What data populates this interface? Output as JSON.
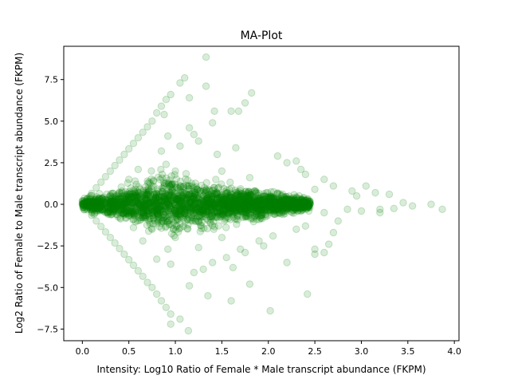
{
  "chart_data": {
    "type": "scatter",
    "title": "MA-Plot",
    "xlabel": "Intensity: Log10 Ratio of Female * Male transcript abundance (FKPM)",
    "ylabel": "Log2 Ratio of Female to Male transcript abundance (FKPM)",
    "xlim": [
      -0.2,
      4.05
    ],
    "ylim": [
      -8.2,
      9.5
    ],
    "xticks": [
      0.0,
      0.5,
      1.0,
      1.5,
      2.0,
      2.5,
      3.0,
      3.5,
      4.0
    ],
    "xtick_labels": [
      "0.0",
      "0.5",
      "1.0",
      "1.5",
      "2.0",
      "2.5",
      "3.0",
      "3.5",
      "4.0"
    ],
    "yticks": [
      -7.5,
      -5.0,
      -2.5,
      0.0,
      2.5,
      5.0,
      7.5
    ],
    "ytick_labels": [
      "−7.5",
      "−5.0",
      "−2.5",
      "0.0",
      "2.5",
      "5.0",
      "7.5"
    ],
    "grid": false,
    "legend": false,
    "marker": "circle",
    "color": "#008000",
    "alpha": 0.15,
    "series": [
      {
        "points": [
          [
            0.0,
            0.0
          ],
          [
            0.05,
            0.33
          ],
          [
            0.1,
            0.66
          ],
          [
            0.15,
            1.0
          ],
          [
            0.2,
            1.33
          ],
          [
            0.25,
            1.66
          ],
          [
            0.3,
            2.0
          ],
          [
            0.35,
            2.33
          ],
          [
            0.4,
            2.66
          ],
          [
            0.45,
            3.0
          ],
          [
            0.5,
            3.33
          ],
          [
            0.55,
            3.66
          ],
          [
            0.6,
            4.0
          ],
          [
            0.65,
            4.33
          ],
          [
            0.7,
            4.66
          ],
          [
            0.75,
            5.0
          ],
          [
            0.8,
            5.5
          ],
          [
            0.85,
            5.9
          ],
          [
            0.9,
            6.3
          ],
          [
            0.95,
            6.6
          ],
          [
            0.05,
            -0.33
          ],
          [
            0.1,
            -0.66
          ],
          [
            0.15,
            -1.0
          ],
          [
            0.2,
            -1.33
          ],
          [
            0.25,
            -1.66
          ],
          [
            0.3,
            -2.0
          ],
          [
            0.35,
            -2.33
          ],
          [
            0.4,
            -2.66
          ],
          [
            0.45,
            -3.0
          ],
          [
            0.5,
            -3.33
          ],
          [
            0.55,
            -3.66
          ],
          [
            0.6,
            -4.0
          ],
          [
            0.65,
            -4.33
          ],
          [
            0.7,
            -4.7
          ],
          [
            0.75,
            -5.0
          ],
          [
            0.8,
            -5.4
          ],
          [
            0.85,
            -5.8
          ],
          [
            0.9,
            -6.2
          ],
          [
            0.95,
            -6.6
          ],
          [
            1.33,
            8.85
          ],
          [
            1.05,
            7.3
          ],
          [
            1.1,
            7.6
          ],
          [
            1.33,
            7.1
          ],
          [
            1.15,
            6.4
          ],
          [
            1.82,
            6.7
          ],
          [
            1.75,
            6.1
          ],
          [
            0.88,
            5.4
          ],
          [
            1.42,
            5.6
          ],
          [
            1.6,
            5.6
          ],
          [
            1.68,
            5.6
          ],
          [
            0.92,
            4.1
          ],
          [
            1.2,
            4.2
          ],
          [
            1.4,
            4.9
          ],
          [
            1.15,
            4.6
          ],
          [
            1.65,
            3.4
          ],
          [
            2.1,
            2.9
          ],
          [
            2.2,
            2.5
          ],
          [
            2.3,
            2.6
          ],
          [
            2.35,
            2.1
          ],
          [
            2.4,
            1.8
          ],
          [
            2.6,
            1.5
          ],
          [
            2.7,
            1.1
          ],
          [
            2.9,
            0.8
          ],
          [
            3.05,
            1.1
          ],
          [
            3.15,
            0.7
          ],
          [
            3.3,
            0.6
          ],
          [
            3.45,
            0.1
          ],
          [
            3.55,
            -0.1
          ],
          [
            3.75,
            0.0
          ],
          [
            3.87,
            -0.3
          ],
          [
            3.2,
            -0.3
          ],
          [
            3.0,
            -0.4
          ],
          [
            2.85,
            -0.3
          ],
          [
            2.75,
            -1.0
          ],
          [
            2.6,
            -2.9
          ],
          [
            2.65,
            -2.4
          ],
          [
            2.5,
            -2.7
          ],
          [
            2.42,
            -5.4
          ],
          [
            2.5,
            -3.0
          ],
          [
            2.7,
            -1.7
          ],
          [
            2.2,
            -3.5
          ],
          [
            2.02,
            -6.4
          ],
          [
            1.8,
            -4.8
          ],
          [
            1.6,
            -5.8
          ],
          [
            1.62,
            -3.8
          ],
          [
            1.35,
            -5.5
          ],
          [
            1.15,
            -4.9
          ],
          [
            1.14,
            -7.6
          ],
          [
            1.05,
            -6.9
          ],
          [
            0.95,
            -7.2
          ],
          [
            1.2,
            -4.1
          ],
          [
            1.3,
            -3.9
          ],
          [
            1.4,
            -3.5
          ],
          [
            1.55,
            -3.2
          ],
          [
            1.7,
            -2.7
          ],
          [
            1.9,
            -2.2
          ],
          [
            2.05,
            -1.9
          ],
          [
            1.95,
            -2.5
          ],
          [
            0.8,
            -3.3
          ],
          [
            0.85,
            3.2
          ],
          [
            1.0,
            -2.0
          ],
          [
            1.0,
            2.0
          ],
          [
            1.5,
            2.0
          ],
          [
            1.5,
            -2.0
          ],
          [
            1.8,
            1.6
          ],
          [
            2.4,
            -1.3
          ],
          [
            2.3,
            -1.5
          ],
          [
            2.6,
            -0.5
          ],
          [
            3.2,
            -0.5
          ],
          [
            3.35,
            -0.25
          ],
          [
            2.95,
            0.5
          ],
          [
            2.5,
            0.9
          ],
          [
            1.25,
            3.8
          ],
          [
            1.05,
            3.5
          ],
          [
            1.45,
            3.0
          ],
          [
            0.95,
            -3.6
          ],
          [
            1.75,
            -2.9
          ],
          [
            1.25,
            -2.6
          ],
          [
            0.6,
            2.1
          ],
          [
            0.65,
            -2.2
          ],
          [
            0.7,
            1.4
          ],
          [
            0.75,
            -1.5
          ],
          [
            0.5,
            1.5
          ],
          [
            0.55,
            -1.4
          ],
          [
            0.9,
            2.4
          ],
          [
            0.92,
            -2.7
          ]
        ]
      }
    ]
  }
}
